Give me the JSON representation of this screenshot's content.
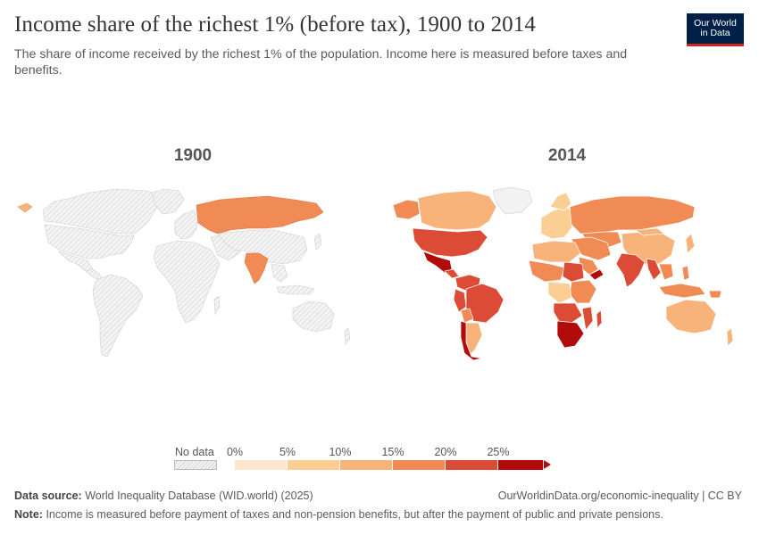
{
  "header": {
    "title": "Income share of the richest 1% (before tax), 1900 to 2014",
    "subtitle": "The share of income received by the richest 1% of the population. Income here is measured before taxes and benefits."
  },
  "logo": {
    "line1": "Our World",
    "line2": "in Data"
  },
  "maps": [
    {
      "year": "1900"
    },
    {
      "year": "2014"
    }
  ],
  "legend": {
    "no_data_label": "No data",
    "ticks": [
      "0%",
      "5%",
      "10%",
      "15%",
      "20%",
      "25%"
    ],
    "colors": [
      "#fde6cd",
      "#fbcf93",
      "#f8b37a",
      "#f08b55",
      "#dc4b35",
      "#b20b0b"
    ]
  },
  "footer": {
    "source_label": "Data source:",
    "source_text": "World Inequality Database (WID.world) (2025)",
    "url_text": "OurWorldinData.org/economic-inequality | CC BY",
    "note_label": "Note:",
    "note_text": "Income is measured before payment of taxes and non-pension benefits, but after the payment of public and private pensions."
  },
  "colors": {
    "nodata_fill": "#f2f2f2",
    "nodata_stroke": "#d6d6d6",
    "brand": "#002147",
    "brand_accent": "#ce261e"
  }
}
